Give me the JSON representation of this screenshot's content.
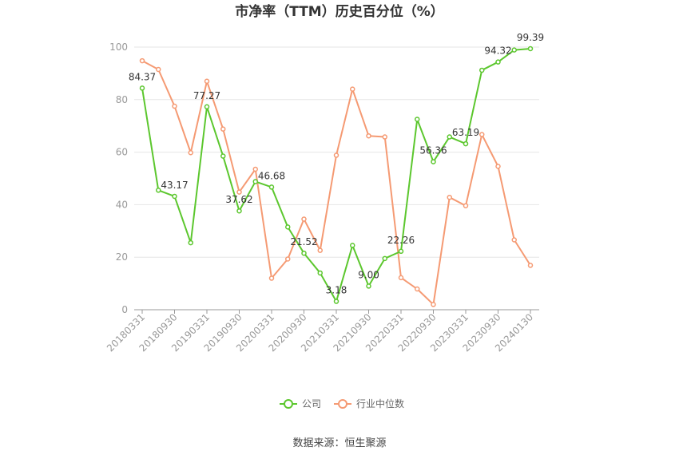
{
  "chart_data": {
    "type": "line",
    "title": "市净率（TTM）历史百分位（%）",
    "source": "数据来源：恒生聚源",
    "ylim": [
      0,
      100
    ],
    "yticks": [
      0,
      20,
      40,
      60,
      80,
      100
    ],
    "grid": true,
    "legend_position": "bottom",
    "x": [
      "20180331",
      "20180630",
      "20180930",
      "20181231",
      "20190331",
      "20190630",
      "20190930",
      "20191231",
      "20200331",
      "20200630",
      "20200930",
      "20201231",
      "20210331",
      "20210630",
      "20210930",
      "20211231",
      "20220331",
      "20220630",
      "20220930",
      "20221231",
      "20230331",
      "20230630",
      "20230930",
      "20231231",
      "20240130"
    ],
    "xtick_labels": [
      "20180331",
      "20180930",
      "20190331",
      "20190930",
      "20200331",
      "20200930",
      "20210331",
      "20210930",
      "20220331",
      "20220930",
      "20230331",
      "20230930",
      "20240130"
    ],
    "series": [
      {
        "name": "公司",
        "color": "#5cc72e",
        "values": [
          84.37,
          45.5,
          43.17,
          25.5,
          77.27,
          58.5,
          37.62,
          48.8,
          46.68,
          31.5,
          21.52,
          14.0,
          3.18,
          24.5,
          9.0,
          19.5,
          22.26,
          72.5,
          56.36,
          65.8,
          63.19,
          91.2,
          94.32,
          98.9,
          99.39
        ],
        "labels": {
          "0": "84.37",
          "2": "43.17",
          "4": "77.27",
          "6": "37.62",
          "8": "46.68",
          "10": "21.52",
          "12": "3.18",
          "14": "9.00",
          "16": "22.26",
          "18": "56.36",
          "20": "63.19",
          "22": "94.32",
          "24": "99.39"
        }
      },
      {
        "name": "行业中位数",
        "color": "#f59a73",
        "values": [
          94.8,
          91.5,
          77.5,
          59.8,
          87.0,
          68.8,
          44.8,
          53.5,
          12.0,
          19.3,
          34.5,
          22.6,
          58.8,
          84.0,
          66.2,
          65.8,
          12.2,
          7.9,
          2.0,
          42.8,
          39.6,
          66.7,
          54.6,
          26.6,
          16.9
        ],
        "labels": {}
      }
    ]
  }
}
